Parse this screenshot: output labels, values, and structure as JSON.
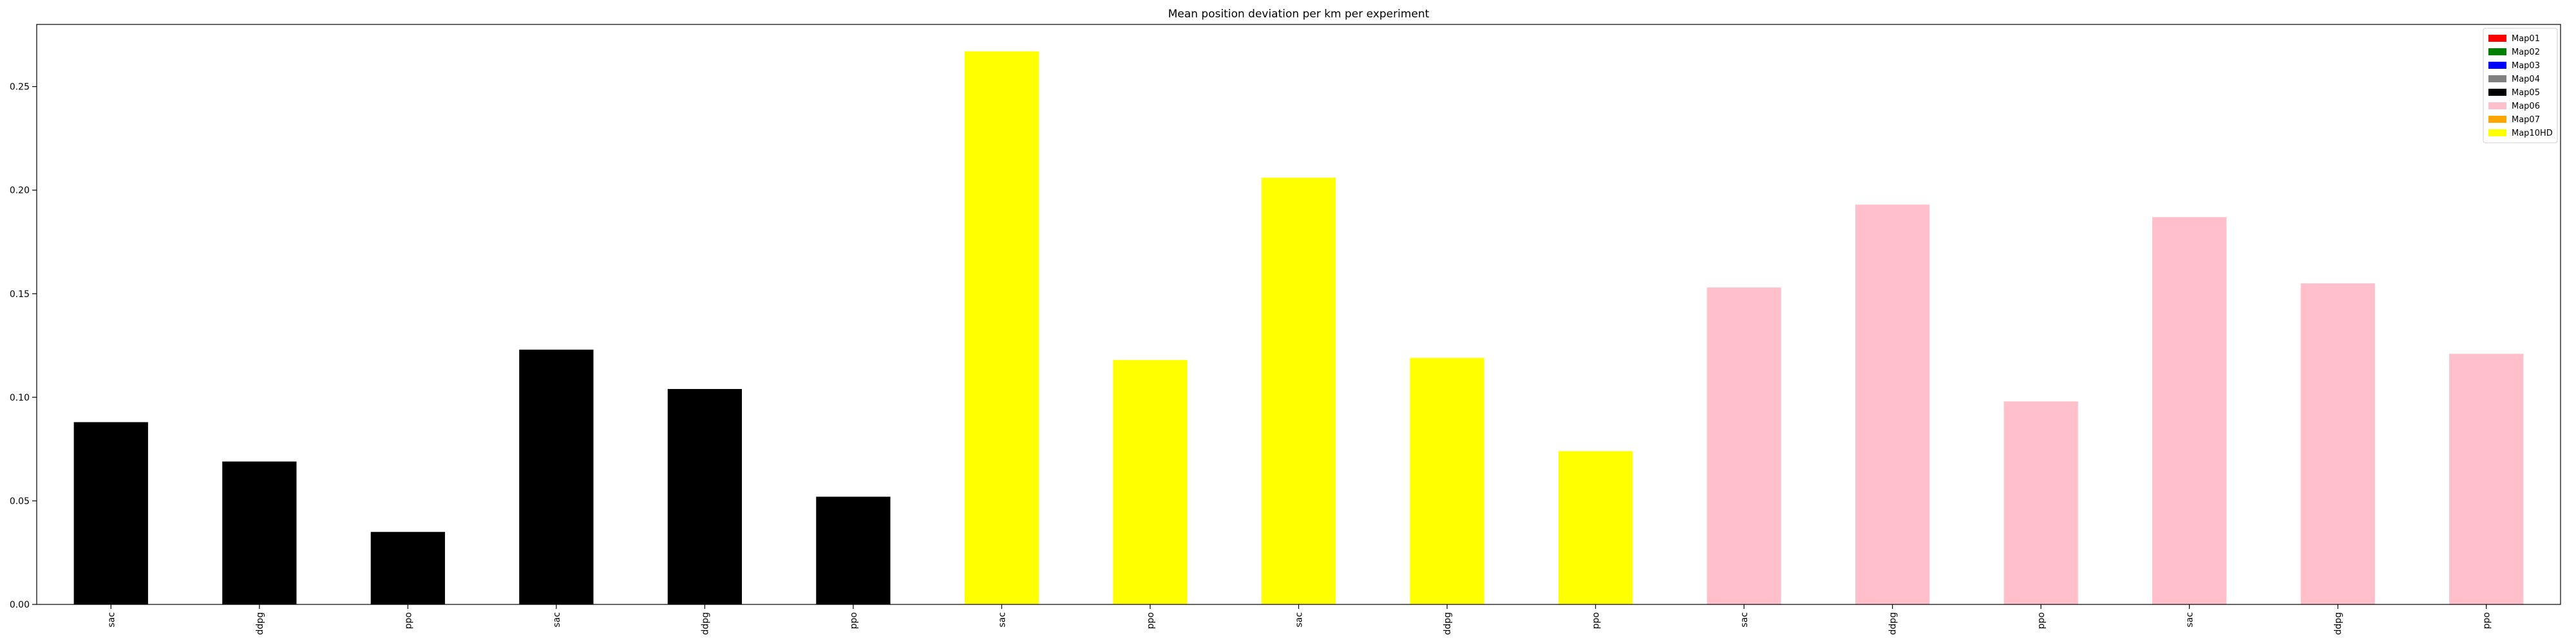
{
  "chart_data": {
    "type": "bar",
    "title": "Mean position deviation per km per experiment",
    "xlabel": "",
    "ylabel": "",
    "ylim": [
      0,
      0.28
    ],
    "yticks": [
      "0.00",
      "0.05",
      "0.10",
      "0.15",
      "0.20",
      "0.25"
    ],
    "grid": false,
    "legend_position": "top-right",
    "legend": [
      {
        "name": "Map01",
        "color": "#ff0000"
      },
      {
        "name": "Map02",
        "color": "#008000"
      },
      {
        "name": "Map03",
        "color": "#0000ff"
      },
      {
        "name": "Map04",
        "color": "#808080"
      },
      {
        "name": "Map05",
        "color": "#000000"
      },
      {
        "name": "Map06",
        "color": "#ffc0cb"
      },
      {
        "name": "Map07",
        "color": "#ffa500"
      },
      {
        "name": "Map10HD",
        "color": "#ffff00"
      }
    ],
    "categories": [
      "sac",
      "ddpg",
      "ppo",
      "sac",
      "ddpg",
      "ppo",
      "sac",
      "ppo",
      "sac",
      "ddpg",
      "ppo",
      "sac",
      "ddpg",
      "ppo",
      "sac",
      "ddpg",
      "ppo"
    ],
    "values": [
      0.088,
      0.069,
      0.035,
      0.123,
      0.104,
      0.052,
      0.267,
      0.118,
      0.206,
      0.119,
      0.074,
      0.153,
      0.193,
      0.098,
      0.187,
      0.155,
      0.121
    ],
    "bar_colors": [
      "#000000",
      "#000000",
      "#000000",
      "#000000",
      "#000000",
      "#000000",
      "#ffff00",
      "#ffff00",
      "#ffff00",
      "#ffff00",
      "#ffff00",
      "#ffc0cb",
      "#ffc0cb",
      "#ffc0cb",
      "#ffc0cb",
      "#ffc0cb",
      "#ffc0cb"
    ]
  }
}
